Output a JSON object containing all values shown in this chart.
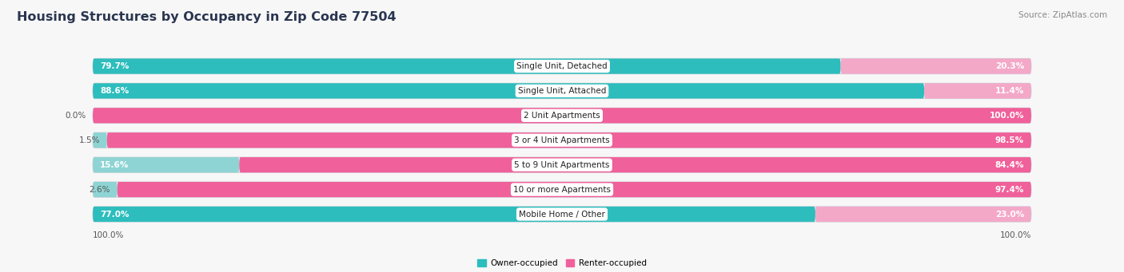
{
  "title": "Housing Structures by Occupancy in Zip Code 77504",
  "source": "Source: ZipAtlas.com",
  "categories": [
    "Single Unit, Detached",
    "Single Unit, Attached",
    "2 Unit Apartments",
    "3 or 4 Unit Apartments",
    "5 to 9 Unit Apartments",
    "10 or more Apartments",
    "Mobile Home / Other"
  ],
  "owner_pct": [
    79.7,
    88.6,
    0.0,
    1.5,
    15.6,
    2.6,
    77.0
  ],
  "renter_pct": [
    20.3,
    11.4,
    100.0,
    98.5,
    84.4,
    97.4,
    23.0
  ],
  "owner_color_strong": "#2dbdbd",
  "owner_color_light": "#8ed4d4",
  "renter_color_strong": "#f0609a",
  "renter_color_light": "#f4a8c8",
  "bar_bg_color": "#e8e8ec",
  "bg_color": "#f7f7f7",
  "title_fontsize": 11.5,
  "source_fontsize": 7.5,
  "label_fontsize": 7.5,
  "pct_fontsize": 7.5,
  "bar_height": 0.62,
  "axis_label_left": "100.0%",
  "axis_label_right": "100.0%"
}
